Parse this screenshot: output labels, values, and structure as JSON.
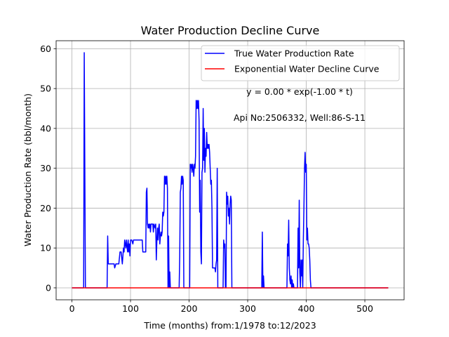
{
  "chart_data": {
    "type": "line",
    "title": "Water Production Decline Curve",
    "xlabel": "Time (months) from:1/1978 to:12/2023",
    "ylabel": "Water Production Rate (bbl/month)",
    "xlim": [
      -27,
      567
    ],
    "ylim": [
      -3,
      62
    ],
    "xticks": [
      0,
      100,
      200,
      300,
      400,
      500
    ],
    "yticks": [
      0,
      10,
      20,
      30,
      40,
      50,
      60
    ],
    "grid": true,
    "legend_position": "top-right",
    "annotations": [
      {
        "text": "y = 0.00 * exp(-1.00 * t)"
      },
      {
        "text": "Api No:2506332, Well:86-S-11"
      }
    ],
    "series": [
      {
        "name": "True Water Production Rate",
        "color": "#0000ff",
        "points": [
          [
            0,
            0
          ],
          [
            20,
            0
          ],
          [
            21,
            59
          ],
          [
            22,
            30
          ],
          [
            23,
            0
          ],
          [
            60,
            0
          ],
          [
            61,
            13
          ],
          [
            62,
            6
          ],
          [
            72,
            6
          ],
          [
            73,
            5
          ],
          [
            75,
            6
          ],
          [
            80,
            6
          ],
          [
            82,
            9
          ],
          [
            84,
            9
          ],
          [
            86,
            6
          ],
          [
            87,
            8
          ],
          [
            88,
            10
          ],
          [
            89,
            9
          ],
          [
            90,
            12
          ],
          [
            92,
            10
          ],
          [
            93,
            12
          ],
          [
            95,
            9
          ],
          [
            96,
            12
          ],
          [
            97,
            9
          ],
          [
            98,
            11
          ],
          [
            99,
            8
          ],
          [
            100,
            12
          ],
          [
            102,
            12
          ],
          [
            104,
            11
          ],
          [
            105,
            12
          ],
          [
            120,
            12
          ],
          [
            121,
            9
          ],
          [
            126,
            9
          ],
          [
            127,
            24
          ],
          [
            128,
            25
          ],
          [
            129,
            16
          ],
          [
            130,
            15
          ],
          [
            131,
            16
          ],
          [
            132,
            15
          ],
          [
            133,
            16
          ],
          [
            134,
            14
          ],
          [
            135,
            16
          ],
          [
            138,
            16
          ],
          [
            139,
            14
          ],
          [
            140,
            16
          ],
          [
            142,
            15
          ],
          [
            143,
            16
          ],
          [
            144,
            7
          ],
          [
            145,
            12
          ],
          [
            146,
            15
          ],
          [
            147,
            12
          ],
          [
            148,
            15
          ],
          [
            149,
            16
          ],
          [
            150,
            11
          ],
          [
            151,
            13
          ],
          [
            152,
            14
          ],
          [
            153,
            13
          ],
          [
            154,
            14
          ],
          [
            155,
            19
          ],
          [
            156,
            18
          ],
          [
            157,
            19
          ],
          [
            158,
            28
          ],
          [
            159,
            26
          ],
          [
            160,
            28
          ],
          [
            161,
            26
          ],
          [
            162,
            28
          ],
          [
            163,
            25
          ],
          [
            164,
            0
          ],
          [
            165,
            13
          ],
          [
            166,
            0
          ],
          [
            167,
            4
          ],
          [
            168,
            0
          ],
          [
            183,
            0
          ],
          [
            184,
            8
          ],
          [
            185,
            24
          ],
          [
            186,
            25
          ],
          [
            187,
            28
          ],
          [
            188,
            26
          ],
          [
            189,
            28
          ],
          [
            190,
            27
          ],
          [
            191,
            0
          ],
          [
            201,
            0
          ],
          [
            202,
            31
          ],
          [
            203,
            30
          ],
          [
            204,
            31
          ],
          [
            205,
            29
          ],
          [
            206,
            31
          ],
          [
            207,
            30
          ],
          [
            208,
            28
          ],
          [
            209,
            31
          ],
          [
            210,
            30
          ],
          [
            211,
            33
          ],
          [
            212,
            47
          ],
          [
            213,
            45
          ],
          [
            214,
            47
          ],
          [
            215,
            45
          ],
          [
            216,
            47
          ],
          [
            217,
            42
          ],
          [
            218,
            19
          ],
          [
            219,
            27
          ],
          [
            220,
            9
          ],
          [
            221,
            6
          ],
          [
            222,
            29
          ],
          [
            223,
            30
          ],
          [
            224,
            45
          ],
          [
            225,
            32
          ],
          [
            226,
            40
          ],
          [
            227,
            29
          ],
          [
            228,
            35
          ],
          [
            229,
            33
          ],
          [
            230,
            39
          ],
          [
            231,
            35
          ],
          [
            232,
            36
          ],
          [
            233,
            35
          ],
          [
            234,
            36
          ],
          [
            235,
            34
          ],
          [
            236,
            30
          ],
          [
            237,
            26
          ],
          [
            238,
            27
          ],
          [
            239,
            20
          ],
          [
            240,
            5
          ],
          [
            244,
            5
          ],
          [
            245,
            4
          ],
          [
            246,
            6
          ],
          [
            247,
            7
          ],
          [
            248,
            30
          ],
          [
            249,
            0
          ],
          [
            258,
            0
          ],
          [
            259,
            12
          ],
          [
            260,
            10
          ],
          [
            261,
            11
          ],
          [
            262,
            0
          ],
          [
            263,
            0
          ],
          [
            264,
            24
          ],
          [
            265,
            21
          ],
          [
            266,
            23
          ],
          [
            267,
            18
          ],
          [
            268,
            20
          ],
          [
            269,
            16
          ],
          [
            270,
            21
          ],
          [
            271,
            23
          ],
          [
            272,
            22
          ],
          [
            273,
            0
          ],
          [
            324,
            0
          ],
          [
            325,
            14
          ],
          [
            326,
            0
          ],
          [
            327,
            3
          ],
          [
            328,
            0
          ],
          [
            367,
            0
          ],
          [
            368,
            11
          ],
          [
            369,
            8
          ],
          [
            370,
            17
          ],
          [
            371,
            5
          ],
          [
            372,
            2
          ],
          [
            373,
            1
          ],
          [
            374,
            3
          ],
          [
            375,
            0
          ],
          [
            376,
            2
          ],
          [
            377,
            0
          ],
          [
            378,
            1
          ],
          [
            379,
            0
          ],
          [
            385,
            0
          ],
          [
            386,
            15
          ],
          [
            387,
            5
          ],
          [
            388,
            22
          ],
          [
            389,
            4
          ],
          [
            390,
            0
          ],
          [
            391,
            7
          ],
          [
            392,
            3
          ],
          [
            393,
            7
          ],
          [
            394,
            0
          ],
          [
            395,
            12
          ],
          [
            396,
            20
          ],
          [
            397,
            30
          ],
          [
            398,
            34
          ],
          [
            399,
            29
          ],
          [
            400,
            31
          ],
          [
            401,
            12
          ],
          [
            402,
            15
          ],
          [
            403,
            11
          ],
          [
            404,
            11
          ],
          [
            405,
            10
          ],
          [
            406,
            7
          ],
          [
            407,
            2
          ],
          [
            408,
            0
          ],
          [
            540,
            0
          ]
        ]
      },
      {
        "name": "Exponential Water Decline Curve",
        "color": "#ff0000",
        "points": [
          [
            0,
            0
          ],
          [
            540,
            0
          ]
        ]
      }
    ]
  }
}
